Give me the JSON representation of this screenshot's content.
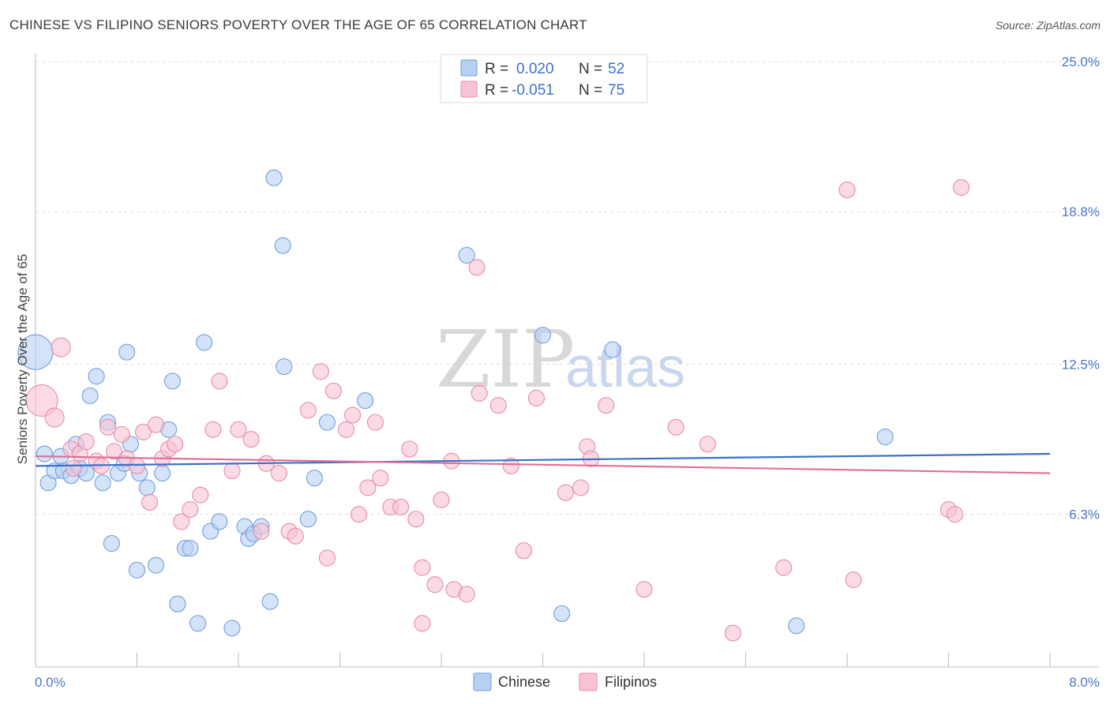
{
  "header": {
    "title": "CHINESE VS FILIPINO SENIORS POVERTY OVER THE AGE OF 65 CORRELATION CHART",
    "source": "Source: ZipAtlas.com"
  },
  "legend": {
    "rows": [
      {
        "r_label": "R =",
        "r_value": "0.020",
        "n_label": "N =",
        "n_value": "52"
      },
      {
        "r_label": "R =",
        "r_value": "-0.051",
        "n_label": "N =",
        "n_value": "75"
      }
    ]
  },
  "watermark": {
    "zip": "ZIP",
    "atlas": "atlas"
  },
  "colors": {
    "chinese_fill": "#b7d0f2",
    "chinese_stroke": "#6f9ede",
    "chinese_line": "#3a72c8",
    "filipino_fill": "#f7c3d3",
    "filipino_stroke": "#e88aa8",
    "filipino_line": "#e06f97",
    "grid": "#dddddd",
    "tick_text": "#4a78c8"
  },
  "chart_data": {
    "type": "scatter",
    "title": "CHINESE VS FILIPINO SENIORS POVERTY OVER THE AGE OF 65 CORRELATION CHART",
    "xlabel": "",
    "ylabel": "Seniors Poverty Over the Age of 65",
    "xlim": [
      0,
      8
    ],
    "ylim": [
      0,
      25
    ],
    "x_tick_labels": [
      "0.0%",
      "8.0%"
    ],
    "y_ticks": [
      6.3,
      12.5,
      18.8,
      25.0
    ],
    "y_tick_labels": [
      "6.3%",
      "12.5%",
      "18.8%",
      "25.0%"
    ],
    "grid": true,
    "legend_position": "top-center",
    "series": [
      {
        "name": "Chinese",
        "r": 0.02,
        "n": 52,
        "trend": [
          [
            0,
            8.3
          ],
          [
            8,
            8.8
          ]
        ],
        "points": [
          [
            0.0,
            13.0,
            22
          ],
          [
            0.07,
            8.8,
            10
          ],
          [
            0.1,
            7.6,
            10
          ],
          [
            0.15,
            8.1,
            10
          ],
          [
            0.2,
            8.7,
            10
          ],
          [
            0.22,
            8.1,
            10
          ],
          [
            0.28,
            7.9,
            10
          ],
          [
            0.32,
            9.2,
            10
          ],
          [
            0.35,
            8.2,
            10
          ],
          [
            0.4,
            8.0,
            10
          ],
          [
            0.43,
            11.2,
            10
          ],
          [
            0.48,
            12.0,
            10
          ],
          [
            0.53,
            7.6,
            10
          ],
          [
            0.57,
            10.1,
            10
          ],
          [
            0.6,
            5.1,
            10
          ],
          [
            0.65,
            8.0,
            10
          ],
          [
            0.7,
            8.4,
            10
          ],
          [
            0.72,
            13.0,
            10
          ],
          [
            0.75,
            9.2,
            10
          ],
          [
            0.8,
            4.0,
            10
          ],
          [
            0.82,
            8.0,
            10
          ],
          [
            0.88,
            7.4,
            10
          ],
          [
            0.95,
            4.2,
            10
          ],
          [
            1.0,
            8.0,
            10
          ],
          [
            1.05,
            9.8,
            10
          ],
          [
            1.08,
            11.8,
            10
          ],
          [
            1.12,
            2.6,
            10
          ],
          [
            1.18,
            4.9,
            10
          ],
          [
            1.22,
            4.9,
            10
          ],
          [
            1.28,
            1.8,
            10
          ],
          [
            1.33,
            13.4,
            10
          ],
          [
            1.38,
            5.6,
            10
          ],
          [
            1.45,
            6.0,
            10
          ],
          [
            1.55,
            1.6,
            10
          ],
          [
            1.65,
            5.8,
            10
          ],
          [
            1.68,
            5.3,
            10
          ],
          [
            1.72,
            5.5,
            10
          ],
          [
            1.78,
            5.8,
            10
          ],
          [
            1.85,
            2.7,
            10
          ],
          [
            1.88,
            20.2,
            10
          ],
          [
            1.95,
            17.4,
            10
          ],
          [
            1.96,
            12.4,
            10
          ],
          [
            2.15,
            6.1,
            10
          ],
          [
            2.2,
            7.8,
            10
          ],
          [
            2.3,
            10.1,
            10
          ],
          [
            2.6,
            11.0,
            10
          ],
          [
            3.4,
            17.0,
            10
          ],
          [
            4.0,
            13.7,
            10
          ],
          [
            4.15,
            2.2,
            10
          ],
          [
            4.55,
            13.1,
            10
          ],
          [
            6.0,
            1.7,
            10
          ],
          [
            6.7,
            9.5,
            10
          ]
        ]
      },
      {
        "name": "Filipinos",
        "r": -0.051,
        "n": 75,
        "trend": [
          [
            0,
            8.7
          ],
          [
            8,
            8.0
          ]
        ],
        "points": [
          [
            0.05,
            11.0,
            20
          ],
          [
            0.15,
            10.3,
            12
          ],
          [
            0.2,
            13.2,
            12
          ],
          [
            0.28,
            9.0,
            10
          ],
          [
            0.35,
            8.8,
            10
          ],
          [
            0.4,
            9.3,
            10
          ],
          [
            0.48,
            8.5,
            10
          ],
          [
            0.52,
            8.3,
            10
          ],
          [
            0.57,
            9.9,
            10
          ],
          [
            0.62,
            8.9,
            10
          ],
          [
            0.68,
            9.6,
            10
          ],
          [
            0.72,
            8.6,
            10
          ],
          [
            0.8,
            8.3,
            10
          ],
          [
            0.85,
            9.7,
            10
          ],
          [
            0.9,
            6.8,
            10
          ],
          [
            0.95,
            10.0,
            10
          ],
          [
            1.0,
            8.6,
            10
          ],
          [
            1.05,
            9.0,
            10
          ],
          [
            1.1,
            9.2,
            10
          ],
          [
            1.15,
            6.0,
            10
          ],
          [
            1.22,
            6.5,
            10
          ],
          [
            1.3,
            7.1,
            10
          ],
          [
            1.4,
            9.8,
            10
          ],
          [
            1.45,
            11.8,
            10
          ],
          [
            1.55,
            8.1,
            10
          ],
          [
            1.6,
            9.8,
            10
          ],
          [
            1.7,
            9.4,
            10
          ],
          [
            1.78,
            5.6,
            10
          ],
          [
            1.82,
            8.4,
            10
          ],
          [
            1.92,
            8.0,
            10
          ],
          [
            2.0,
            5.6,
            10
          ],
          [
            2.05,
            5.4,
            10
          ],
          [
            2.15,
            10.6,
            10
          ],
          [
            2.25,
            12.2,
            10
          ],
          [
            2.3,
            4.5,
            10
          ],
          [
            2.35,
            11.4,
            10
          ],
          [
            2.45,
            9.8,
            10
          ],
          [
            2.5,
            10.4,
            10
          ],
          [
            2.55,
            6.3,
            10
          ],
          [
            2.62,
            7.4,
            10
          ],
          [
            2.68,
            10.1,
            10
          ],
          [
            2.72,
            7.8,
            10
          ],
          [
            2.8,
            6.6,
            10
          ],
          [
            2.88,
            6.6,
            10
          ],
          [
            2.95,
            9.0,
            10
          ],
          [
            3.0,
            6.1,
            10
          ],
          [
            3.05,
            4.1,
            10
          ],
          [
            3.15,
            3.4,
            10
          ],
          [
            3.2,
            6.9,
            10
          ],
          [
            3.28,
            8.5,
            10
          ],
          [
            3.3,
            3.2,
            10
          ],
          [
            3.4,
            3.0,
            10
          ],
          [
            3.48,
            16.5,
            10
          ],
          [
            3.5,
            11.3,
            10
          ],
          [
            3.65,
            10.8,
            10
          ],
          [
            3.75,
            8.3,
            10
          ],
          [
            3.85,
            4.8,
            10
          ],
          [
            3.95,
            11.1,
            10
          ],
          [
            4.18,
            7.2,
            10
          ],
          [
            4.3,
            7.4,
            10
          ],
          [
            4.35,
            9.1,
            10
          ],
          [
            4.38,
            8.6,
            10
          ],
          [
            4.5,
            10.8,
            10
          ],
          [
            4.8,
            3.2,
            10
          ],
          [
            5.05,
            9.9,
            10
          ],
          [
            5.3,
            9.2,
            10
          ],
          [
            5.5,
            1.4,
            10
          ],
          [
            5.9,
            4.1,
            10
          ],
          [
            6.4,
            19.7,
            10
          ],
          [
            6.45,
            3.6,
            10
          ],
          [
            7.2,
            6.5,
            10
          ],
          [
            7.25,
            6.3,
            10
          ],
          [
            7.3,
            19.8,
            10
          ],
          [
            3.05,
            1.8,
            10
          ],
          [
            0.3,
            8.2,
            10
          ]
        ]
      }
    ]
  }
}
